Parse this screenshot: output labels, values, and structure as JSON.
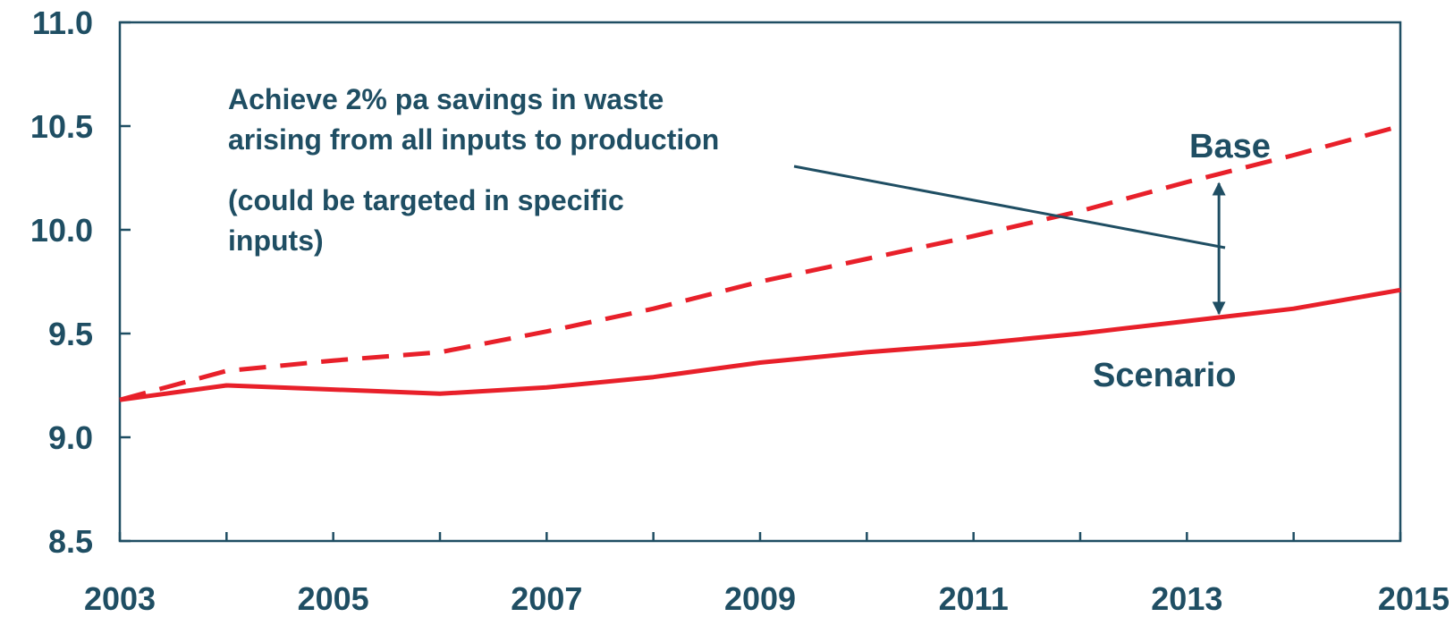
{
  "chart_data": {
    "type": "line",
    "title": "",
    "xlabel": "",
    "ylabel": "",
    "x": [
      2003,
      2004,
      2005,
      2006,
      2007,
      2008,
      2009,
      2010,
      2011,
      2012,
      2013,
      2014,
      2015
    ],
    "x_tick_labels": [
      "2003",
      "2005",
      "2007",
      "2009",
      "2011",
      "2013",
      "2015"
    ],
    "y_tick_labels": [
      "8.5",
      "9.0",
      "9.5",
      "10.0",
      "10.5",
      "11.0"
    ],
    "xlim": [
      2003,
      2015
    ],
    "ylim": [
      8.5,
      11.0
    ],
    "grid": false,
    "series": [
      {
        "name": "Base",
        "style": "dashed",
        "color": "#e8202a",
        "values": [
          9.18,
          9.32,
          9.37,
          9.41,
          9.51,
          9.62,
          9.75,
          9.86,
          9.97,
          10.09,
          10.23,
          10.36,
          10.5
        ]
      },
      {
        "name": "Scenario",
        "style": "solid",
        "color": "#e8202a",
        "values": [
          9.18,
          9.25,
          9.23,
          9.21,
          9.24,
          9.29,
          9.36,
          9.41,
          9.45,
          9.5,
          9.56,
          9.62,
          9.71
        ]
      }
    ],
    "annotations": [
      {
        "id": "note-line-1",
        "text": "Achieve 2% pa savings in waste"
      },
      {
        "id": "note-line-2",
        "text": "arising from all inputs to production"
      },
      {
        "id": "note-line-3",
        "text": "(could be targeted in specific"
      },
      {
        "id": "note-line-4",
        "text": "inputs)"
      }
    ],
    "gap_arrow": {
      "x": 2013.3,
      "from": 10.25,
      "to": 9.57
    }
  },
  "colors": {
    "axis": "#1f4e63",
    "text": "#1f4e63",
    "series": "#e8202a"
  }
}
